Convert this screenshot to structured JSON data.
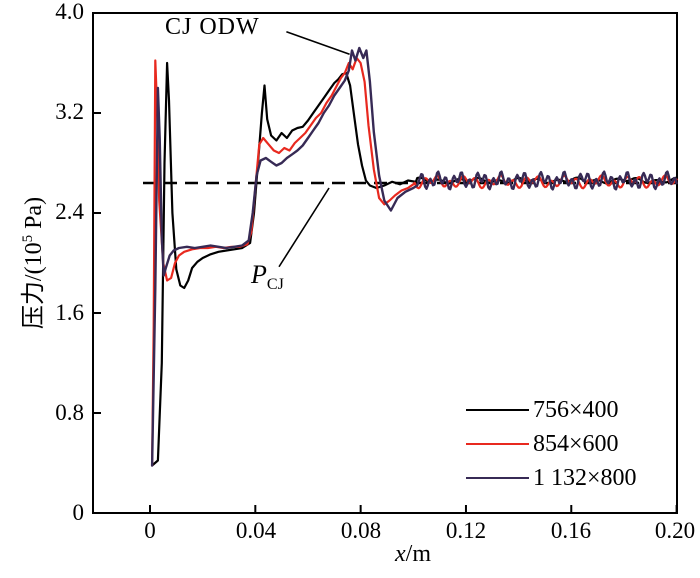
{
  "figure": {
    "background": "#ffffff",
    "frame_color": "#000000"
  },
  "chart_data": {
    "type": "line",
    "title": "",
    "xlabel": {
      "italic": "x",
      "rest": "/m"
    },
    "ylabel": {
      "prefix": "压力/(10",
      "sup": "5",
      "suffix": " Pa)"
    },
    "x_range": [
      -0.0216,
      0.2
    ],
    "y_range": [
      0,
      4.0
    ],
    "grid": false,
    "legend_position": "lower right",
    "x_ticks": {
      "values": [
        0,
        0.04,
        0.08,
        0.12,
        0.16,
        0.2
      ],
      "labels": [
        "0",
        "0.04",
        "0.08",
        "0.12",
        "0.16",
        "0.20"
      ]
    },
    "y_ticks": {
      "values": [
        0,
        0.8,
        1.6,
        2.4,
        3.2,
        4.0
      ],
      "labels": [
        "0",
        "0.8",
        "1.6",
        "2.4",
        "3.2",
        "4.0"
      ]
    },
    "reference_line": {
      "value": 2.64,
      "style": "dashed",
      "color": "#000000",
      "label": {
        "italic": "P",
        "sub": "CJ"
      },
      "leader": {
        "from": [
          0.049,
          1.97
        ],
        "to": [
          0.068,
          2.6
        ]
      }
    },
    "annotation": {
      "label": "CJ ODW",
      "leader": {
        "from": [
          0.0518,
          3.85
        ],
        "to": [
          0.0758,
          3.67
        ]
      }
    },
    "series": [
      {
        "name": "756×400",
        "color": "#000000",
        "width": 2.2,
        "points": [
          [
            0.0008,
            0.38
          ],
          [
            0.003,
            0.42
          ],
          [
            0.0045,
            1.2
          ],
          [
            0.0055,
            2.8
          ],
          [
            0.0065,
            3.6
          ],
          [
            0.0072,
            3.3
          ],
          [
            0.0085,
            2.4
          ],
          [
            0.01,
            1.95
          ],
          [
            0.0115,
            1.82
          ],
          [
            0.013,
            1.8
          ],
          [
            0.0145,
            1.86
          ],
          [
            0.016,
            1.96
          ],
          [
            0.018,
            2.01
          ],
          [
            0.02,
            2.04
          ],
          [
            0.023,
            2.07
          ],
          [
            0.026,
            2.09
          ],
          [
            0.029,
            2.1
          ],
          [
            0.032,
            2.11
          ],
          [
            0.035,
            2.12
          ],
          [
            0.038,
            2.16
          ],
          [
            0.0395,
            2.4
          ],
          [
            0.041,
            2.8
          ],
          [
            0.0425,
            3.2
          ],
          [
            0.0435,
            3.42
          ],
          [
            0.0445,
            3.15
          ],
          [
            0.046,
            3.02
          ],
          [
            0.048,
            2.98
          ],
          [
            0.05,
            3.04
          ],
          [
            0.052,
            3.0
          ],
          [
            0.054,
            3.06
          ],
          [
            0.056,
            3.08
          ],
          [
            0.058,
            3.09
          ],
          [
            0.06,
            3.14
          ],
          [
            0.062,
            3.2
          ],
          [
            0.064,
            3.26
          ],
          [
            0.066,
            3.32
          ],
          [
            0.068,
            3.38
          ],
          [
            0.07,
            3.44
          ],
          [
            0.0715,
            3.47
          ],
          [
            0.073,
            3.51
          ],
          [
            0.0745,
            3.52
          ],
          [
            0.076,
            3.42
          ],
          [
            0.0775,
            3.18
          ],
          [
            0.079,
            2.95
          ],
          [
            0.0805,
            2.78
          ],
          [
            0.082,
            2.66
          ],
          [
            0.0835,
            2.62
          ],
          [
            0.086,
            2.6
          ],
          [
            0.089,
            2.62
          ],
          [
            0.092,
            2.65
          ],
          [
            0.095,
            2.63
          ],
          [
            0.098,
            2.66
          ],
          [
            0.101,
            2.65
          ]
        ],
        "noise": {
          "start_x": 0.101,
          "base": 2.66,
          "amplitude": 0.022,
          "period": 0.0075,
          "phase": 0.5
        }
      },
      {
        "name": "854×600",
        "color": "#e8291f",
        "width": 2.2,
        "points": [
          [
            0.0008,
            0.38
          ],
          [
            0.0014,
            1.5
          ],
          [
            0.002,
            3.62
          ],
          [
            0.0026,
            3.3
          ],
          [
            0.0035,
            2.5
          ],
          [
            0.005,
            2.0
          ],
          [
            0.0065,
            1.86
          ],
          [
            0.008,
            1.88
          ],
          [
            0.0095,
            2.0
          ],
          [
            0.011,
            2.06
          ],
          [
            0.013,
            2.09
          ],
          [
            0.016,
            2.11
          ],
          [
            0.019,
            2.12
          ],
          [
            0.022,
            2.12
          ],
          [
            0.025,
            2.13
          ],
          [
            0.028,
            2.12
          ],
          [
            0.031,
            2.13
          ],
          [
            0.034,
            2.13
          ],
          [
            0.037,
            2.15
          ],
          [
            0.0385,
            2.25
          ],
          [
            0.04,
            2.6
          ],
          [
            0.0415,
            2.95
          ],
          [
            0.043,
            3.0
          ],
          [
            0.045,
            2.95
          ],
          [
            0.047,
            2.9
          ],
          [
            0.049,
            2.88
          ],
          [
            0.051,
            2.92
          ],
          [
            0.053,
            2.9
          ],
          [
            0.055,
            2.96
          ],
          [
            0.057,
            3.0
          ],
          [
            0.059,
            3.04
          ],
          [
            0.061,
            3.1
          ],
          [
            0.063,
            3.16
          ],
          [
            0.065,
            3.2
          ],
          [
            0.067,
            3.28
          ],
          [
            0.069,
            3.34
          ],
          [
            0.071,
            3.42
          ],
          [
            0.0725,
            3.48
          ],
          [
            0.074,
            3.52
          ],
          [
            0.0755,
            3.6
          ],
          [
            0.077,
            3.55
          ],
          [
            0.0785,
            3.64
          ],
          [
            0.08,
            3.6
          ],
          [
            0.0815,
            3.45
          ],
          [
            0.083,
            3.1
          ],
          [
            0.085,
            2.75
          ],
          [
            0.087,
            2.52
          ],
          [
            0.089,
            2.47
          ],
          [
            0.091,
            2.5
          ],
          [
            0.093,
            2.54
          ],
          [
            0.0955,
            2.58
          ],
          [
            0.098,
            2.6
          ],
          [
            0.1,
            2.63
          ]
        ],
        "noise": {
          "start_x": 0.1,
          "base": 2.65,
          "amplitude": 0.05,
          "period": 0.0048,
          "phase": 2.1
        }
      },
      {
        "name": "1 132×800",
        "color": "#372a55",
        "width": 2.4,
        "points": [
          [
            0.0008,
            0.38
          ],
          [
            0.002,
            1.8
          ],
          [
            0.003,
            3.4
          ],
          [
            0.0037,
            3.0
          ],
          [
            0.0045,
            2.2
          ],
          [
            0.0052,
            1.9
          ],
          [
            0.006,
            1.96
          ],
          [
            0.0075,
            2.06
          ],
          [
            0.009,
            2.1
          ],
          [
            0.011,
            2.12
          ],
          [
            0.014,
            2.13
          ],
          [
            0.017,
            2.12
          ],
          [
            0.02,
            2.13
          ],
          [
            0.023,
            2.14
          ],
          [
            0.026,
            2.13
          ],
          [
            0.029,
            2.12
          ],
          [
            0.032,
            2.13
          ],
          [
            0.035,
            2.14
          ],
          [
            0.0375,
            2.18
          ],
          [
            0.039,
            2.4
          ],
          [
            0.0405,
            2.7
          ],
          [
            0.042,
            2.82
          ],
          [
            0.044,
            2.84
          ],
          [
            0.046,
            2.81
          ],
          [
            0.048,
            2.78
          ],
          [
            0.05,
            2.8
          ],
          [
            0.052,
            2.84
          ],
          [
            0.054,
            2.87
          ],
          [
            0.056,
            2.9
          ],
          [
            0.058,
            2.94
          ],
          [
            0.06,
            3.0
          ],
          [
            0.062,
            3.06
          ],
          [
            0.064,
            3.12
          ],
          [
            0.066,
            3.2
          ],
          [
            0.068,
            3.26
          ],
          [
            0.07,
            3.34
          ],
          [
            0.072,
            3.4
          ],
          [
            0.074,
            3.46
          ],
          [
            0.0755,
            3.54
          ],
          [
            0.0767,
            3.7
          ],
          [
            0.078,
            3.62
          ],
          [
            0.0795,
            3.72
          ],
          [
            0.081,
            3.64
          ],
          [
            0.0822,
            3.7
          ],
          [
            0.0835,
            3.45
          ],
          [
            0.085,
            3.05
          ],
          [
            0.087,
            2.7
          ],
          [
            0.089,
            2.5
          ],
          [
            0.0915,
            2.42
          ],
          [
            0.094,
            2.52
          ],
          [
            0.097,
            2.57
          ],
          [
            0.1,
            2.6
          ],
          [
            0.1015,
            2.62
          ]
        ],
        "noise": {
          "start_x": 0.1015,
          "base": 2.66,
          "amplitude": 0.07,
          "period": 0.003,
          "phase": 4.0
        }
      }
    ]
  }
}
